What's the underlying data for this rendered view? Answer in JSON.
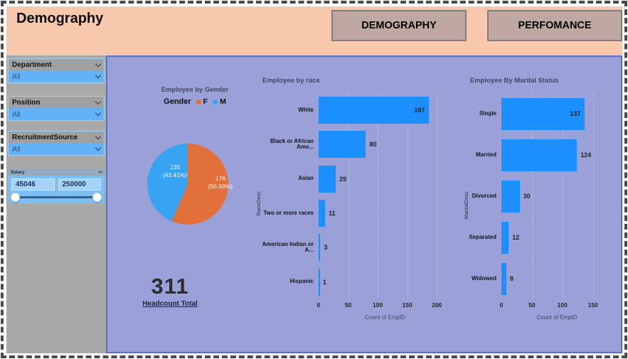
{
  "page": {
    "title": "Demography",
    "nav_buttons": [
      {
        "label": "DEMOGRAPHY"
      },
      {
        "label": "PERFOMANCE"
      }
    ]
  },
  "filters": {
    "department": {
      "label": "Department",
      "value": "All"
    },
    "position": {
      "label": "Position",
      "value": "All"
    },
    "recruitment_source": {
      "label": "RecruitmentSource",
      "value": "All"
    },
    "salary": {
      "label": "Salary",
      "min": "45046",
      "max": "250000"
    }
  },
  "headcount": {
    "value": "311",
    "label": "Headcount Total"
  },
  "colors": {
    "header_bg": "#f7c8ac",
    "canvas_bg": "#9aa1d8",
    "sidebar_bg": "#a9a9a9",
    "slicer_blue": "#63b1f7",
    "button_bg": "#c0a8a2",
    "bar_blue": "#1b8fff",
    "pie_orange": "#e2703a",
    "pie_blue": "#38a3f3"
  },
  "chart_data": [
    {
      "type": "pie",
      "title": "Employee by Gender",
      "legend_title": "Gender",
      "legend_position": "top",
      "series": [
        {
          "name": "F",
          "value": 176,
          "pct": 56.59,
          "pct_label": "(56.59%)",
          "color": "#e2703a"
        },
        {
          "name": "M",
          "value": 135,
          "pct": 43.41,
          "pct_label": "(43.41%)",
          "color": "#38a3f3"
        }
      ]
    },
    {
      "type": "bar",
      "orientation": "horizontal",
      "title": "Employee by race",
      "categories": [
        "White",
        "Black or African Ame...",
        "Asian",
        "Two or more races",
        "American Indian or A...",
        "Hispanic"
      ],
      "values": [
        187,
        80,
        29,
        11,
        3,
        1
      ],
      "xlabel": "Count of EmpID",
      "ylabel": "RaceDesc",
      "xticks": [
        0,
        50,
        100,
        150,
        200
      ],
      "xlim": [
        0,
        225
      ],
      "grid": true,
      "bar_color": "#1b8fff"
    },
    {
      "type": "bar",
      "orientation": "horizontal",
      "title": "Employee By Marital Status",
      "categories": [
        "Single",
        "Married",
        "Divorced",
        "Separated",
        "Widowed"
      ],
      "values": [
        137,
        124,
        30,
        12,
        8
      ],
      "xlabel": "Count of EmpID",
      "ylabel": "MaritalDesc",
      "xticks": [
        0,
        50,
        100,
        150
      ],
      "xlim": [
        0,
        182
      ],
      "grid": true,
      "bar_color": "#1b8fff"
    }
  ]
}
